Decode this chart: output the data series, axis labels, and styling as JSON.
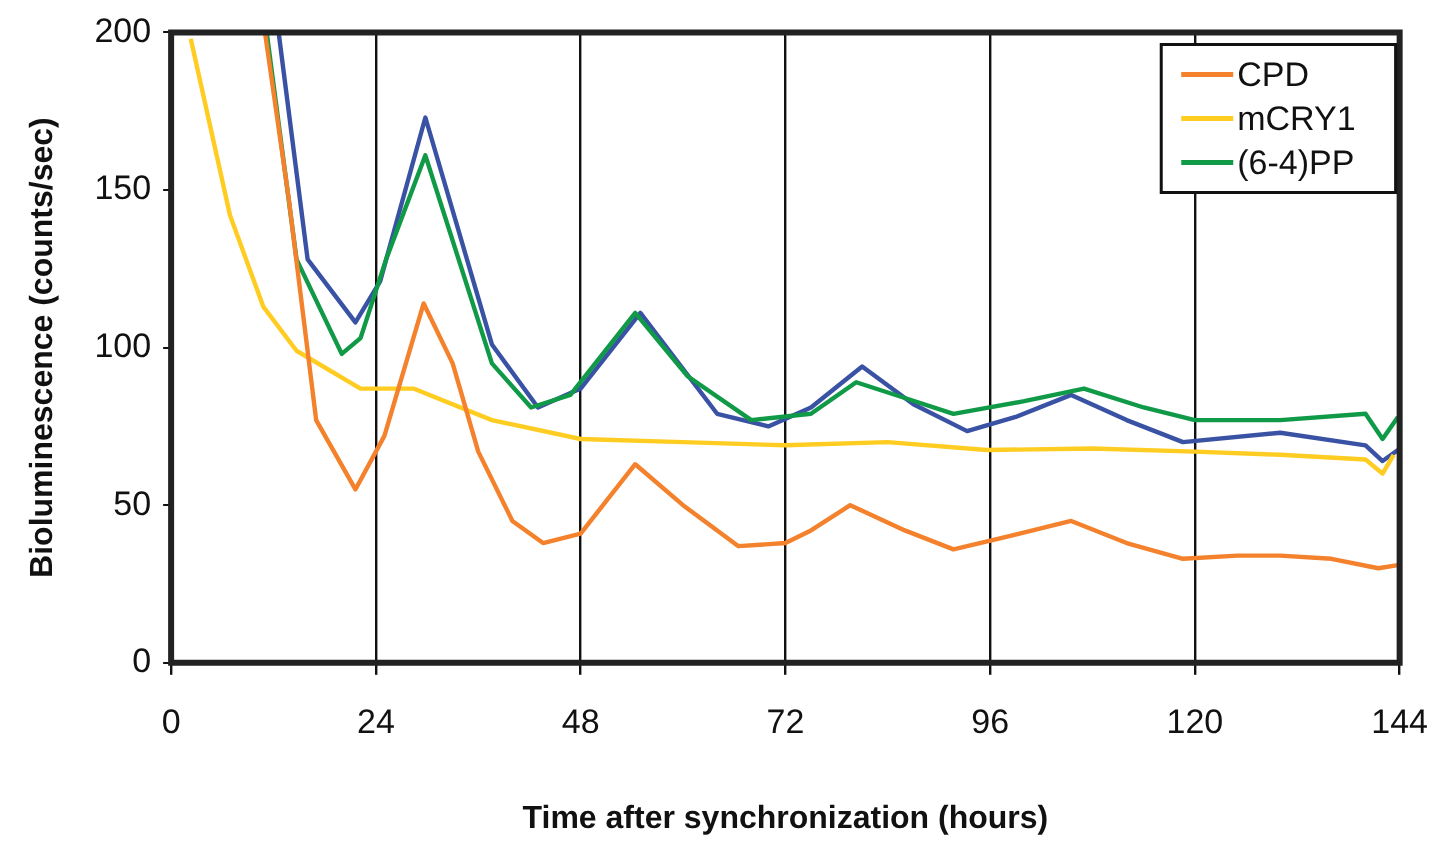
{
  "chart_data": {
    "type": "line",
    "xlabel": "Time after synchronization (hours)",
    "ylabel": "Bioluminescence (counts/sec)",
    "xlim": [
      0,
      144
    ],
    "xticks": [
      0,
      24,
      48,
      72,
      96,
      120,
      144
    ],
    "ylim": [
      0,
      200
    ],
    "yticks": [
      0,
      50,
      100,
      150,
      200
    ],
    "grid": "x",
    "legend": "top right",
    "marker": "none",
    "line_style": "solid",
    "series": [
      {
        "name": "CPD",
        "color": "#f4812c",
        "x": [
          11,
          13.8,
          17,
          21.6,
          25,
          29.6,
          33,
          36,
          40,
          43.6,
          48,
          54.4,
          60,
          66.5,
          72,
          75,
          79.6,
          86,
          91.7,
          98,
          105.5,
          112,
          118.6,
          125,
          130,
          136,
          141.5,
          143.8
        ],
        "values": [
          200,
          147,
          77,
          55,
          72,
          114,
          95,
          67,
          45,
          38,
          41,
          63,
          50,
          37,
          38,
          42,
          50,
          42,
          36,
          40,
          45,
          38,
          33,
          34,
          34,
          33,
          30,
          31
        ]
      },
      {
        "name": "mCRY1",
        "color": "#ffcc22",
        "x": [
          2.3,
          6.9,
          10.8,
          14.7,
          22.2,
          28.4,
          37.6,
          48,
          60,
          72,
          84,
          95.6,
          108,
          120,
          130,
          140,
          142,
          143.3
        ],
        "values": [
          198,
          142,
          113,
          99,
          87,
          87,
          77,
          71,
          70,
          69,
          70,
          67.5,
          68,
          67,
          66,
          64.5,
          60,
          66
        ]
      },
      {
        "name": "(6-4)PP",
        "color": "#109a48",
        "x": [
          11.2,
          14.7,
          20,
          22.2,
          25.2,
          29.8,
          33.7,
          37.6,
          42.2,
          46.8,
          54.4,
          60.5,
          68,
          75,
          80.3,
          86,
          91.7,
          100,
          107,
          114,
          120,
          130,
          140,
          142,
          143.8
        ],
        "values": [
          200,
          128,
          98,
          103,
          128,
          161,
          128,
          95,
          81,
          85,
          111,
          91,
          77,
          79,
          89,
          84,
          79,
          83,
          87,
          81,
          77,
          77,
          79,
          71,
          78
        ]
      },
      {
        "color": "#3a52a4",
        "x": [
          12.6,
          16,
          21.6,
          24.5,
          29.8,
          33.7,
          37.6,
          43,
          48,
          55,
          64,
          70,
          75,
          81,
          87,
          93.3,
          99,
          105.5,
          112,
          118.6,
          130,
          140,
          142,
          143.8
        ],
        "values": [
          200,
          128,
          108,
          121,
          173,
          137,
          101,
          81,
          87,
          111,
          79,
          75,
          81,
          94,
          82,
          73.5,
          78,
          85,
          77,
          70,
          73,
          69,
          64,
          67.5
        ]
      }
    ]
  }
}
